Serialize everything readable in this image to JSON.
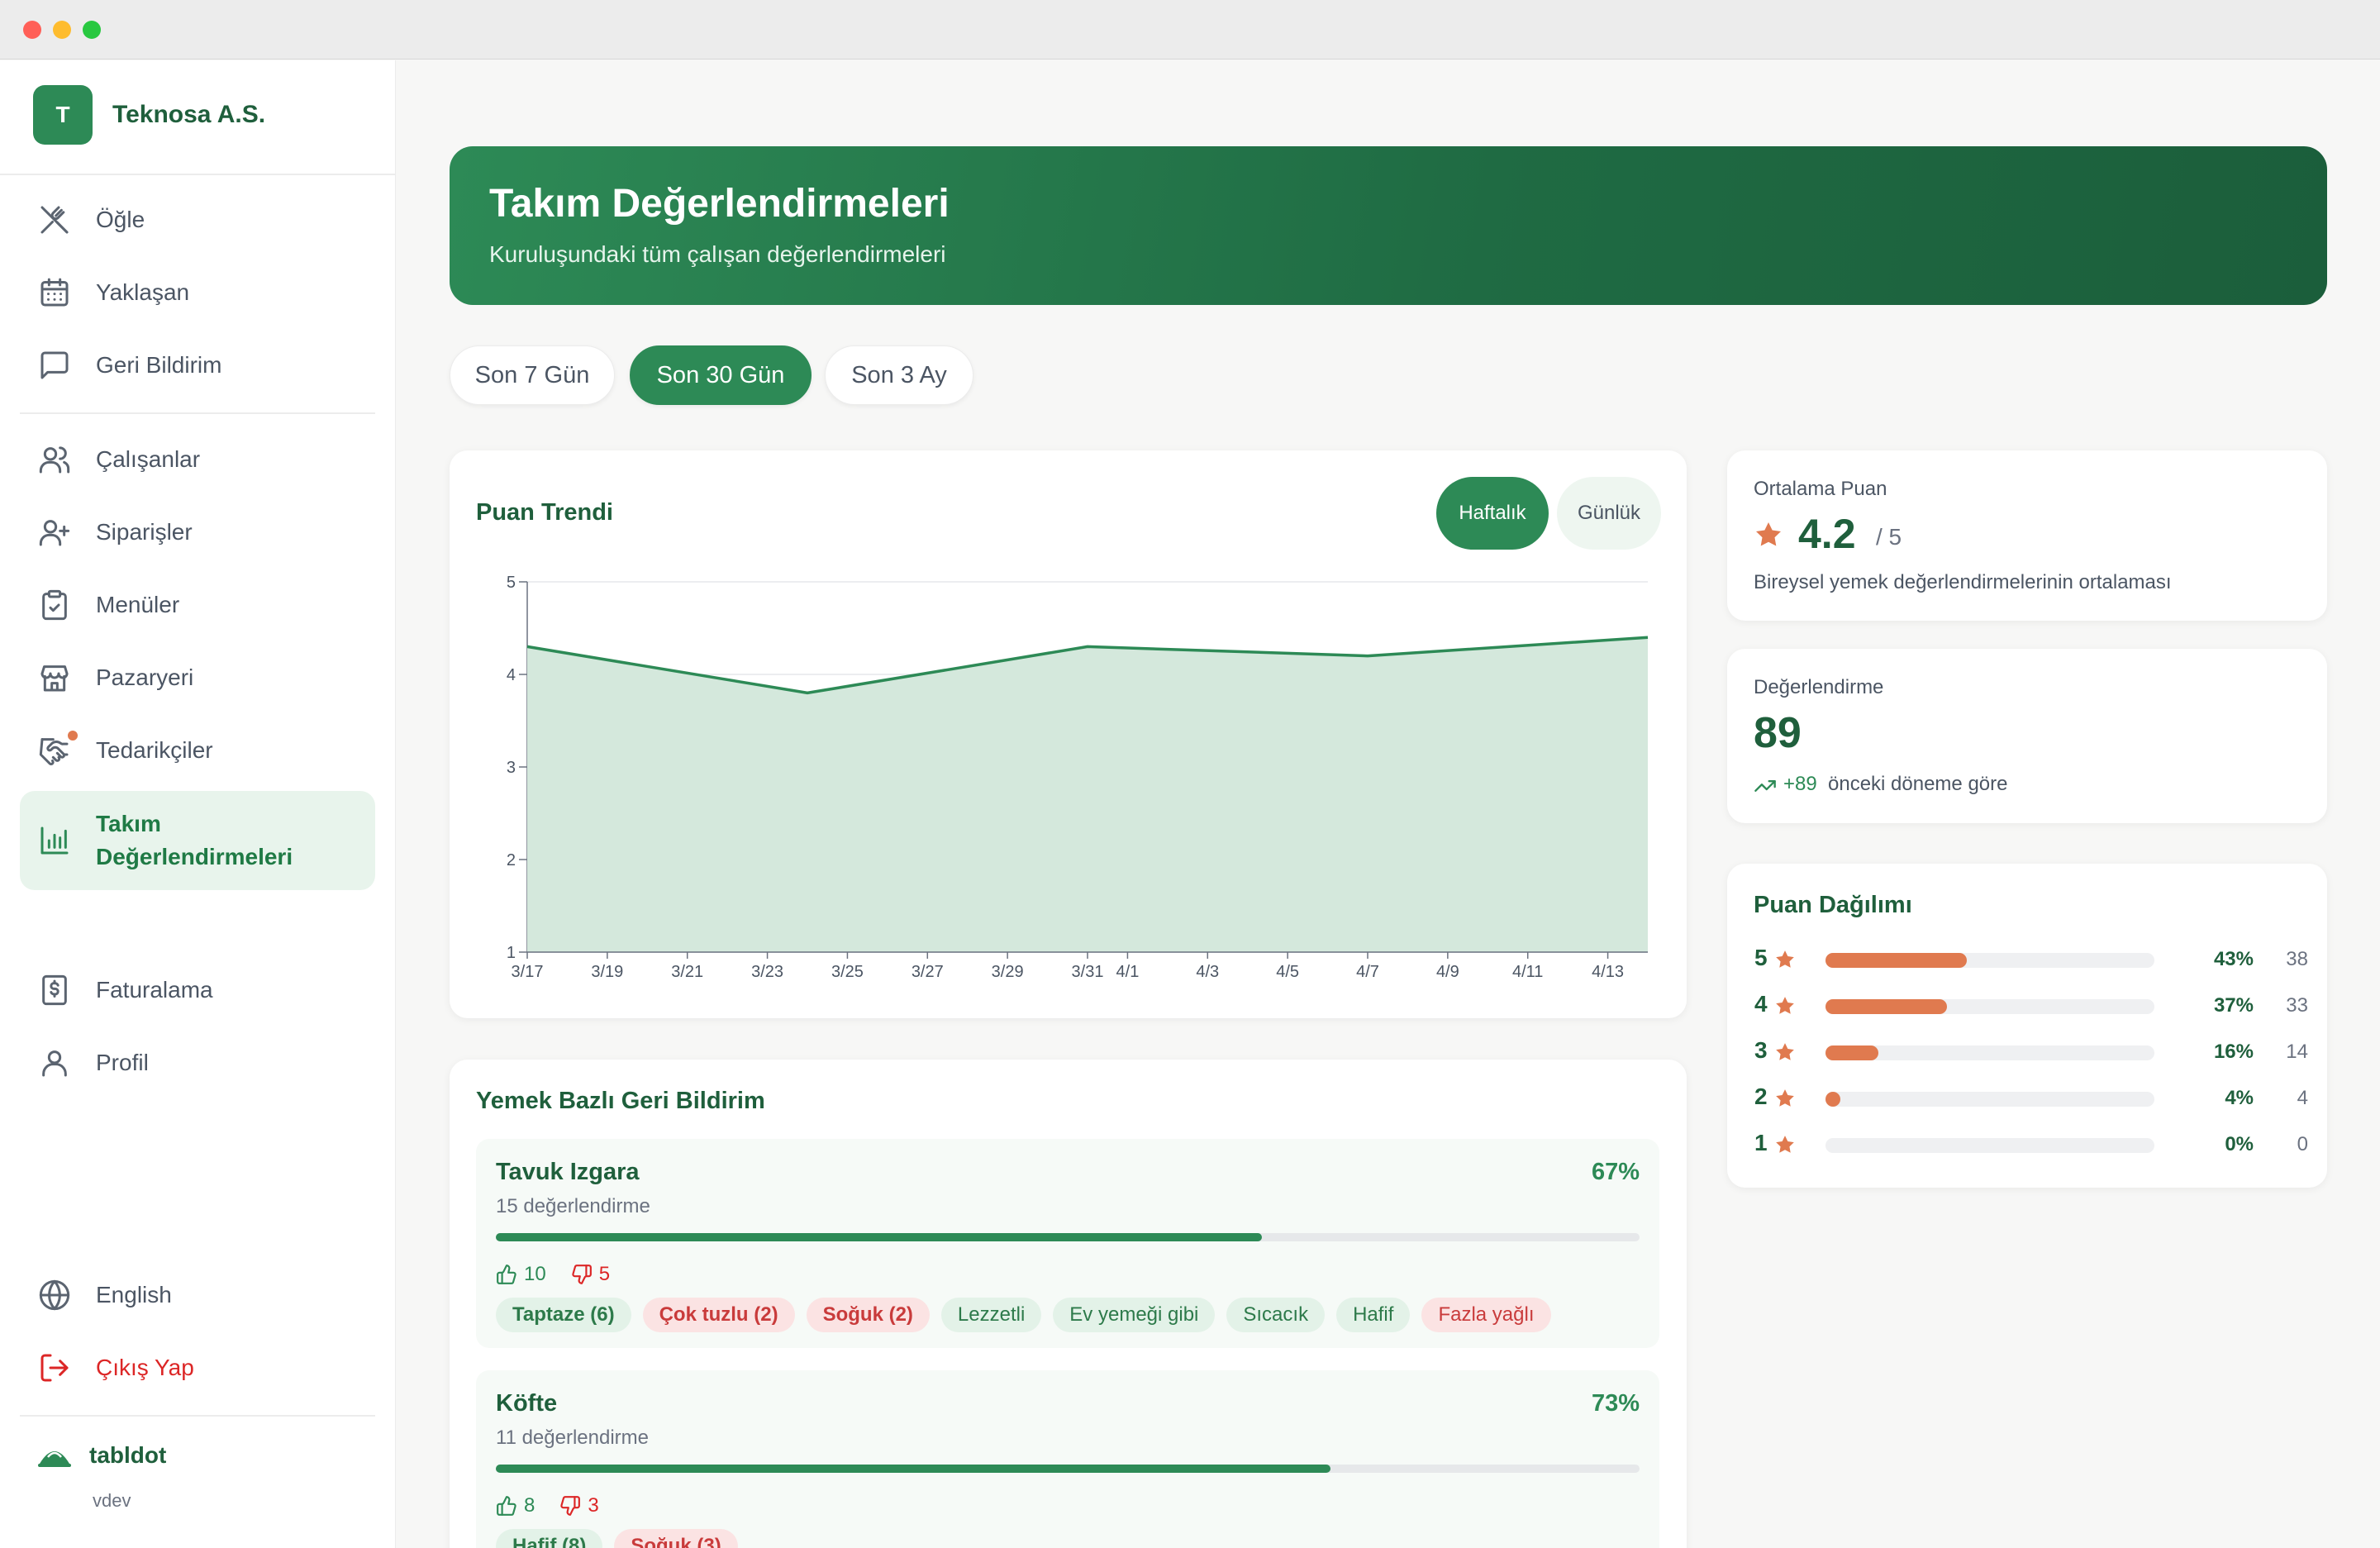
{
  "window": {
    "traffic_lights": [
      "close",
      "minimize",
      "zoom"
    ]
  },
  "sidebar": {
    "company_initial": "T",
    "company_name": "Teknosa A.S.",
    "nav_group1": [
      {
        "label": "Öğle",
        "icon": "utensils-crossed-icon"
      },
      {
        "label": "Yaklaşan",
        "icon": "calendar-icon"
      },
      {
        "label": "Geri Bildirim",
        "icon": "message-square-icon"
      }
    ],
    "nav_group2": [
      {
        "label": "Çalışanlar",
        "icon": "users-icon"
      },
      {
        "label": "Siparişler",
        "icon": "user-plus-icon"
      },
      {
        "label": "Menüler",
        "icon": "clipboard-check-icon"
      },
      {
        "label": "Pazaryeri",
        "icon": "store-icon"
      },
      {
        "label": "Tedarikçiler",
        "icon": "handshake-icon"
      },
      {
        "label": "Takım Değerlendirmeleri",
        "icon": "bar-chart-icon",
        "active": true
      },
      {
        "label": "Faturalama",
        "icon": "receipt-icon"
      },
      {
        "label": "Profil",
        "icon": "user-icon"
      }
    ],
    "language_label": "English",
    "logout_label": "Çıkış Yap",
    "footer_brand": "tabldot",
    "footer_version": "vdev"
  },
  "header": {
    "title": "Takım Değerlendirmeleri",
    "subtitle": "Kuruluşundaki tüm çalışan değerlendirmeleri"
  },
  "range_tabs": [
    {
      "label": "Son 7 Gün",
      "active": false
    },
    {
      "label": "Son 30 Gün",
      "active": true
    },
    {
      "label": "Son 3 Ay",
      "active": false
    }
  ],
  "trend_card": {
    "title": "Puan Trendi",
    "toggle_weekly": "Haftalık",
    "toggle_daily": "Günlük",
    "active_toggle": "Haftalık"
  },
  "chart_data": {
    "type": "area",
    "title": "Puan Trendi",
    "xlabel": "",
    "ylabel": "",
    "ylim": [
      1,
      5
    ],
    "y_ticks": [
      "1",
      "2",
      "3",
      "4",
      "5"
    ],
    "x_ticks": [
      "3/17",
      "3/19",
      "3/21",
      "3/23",
      "3/25",
      "3/27",
      "3/29",
      "3/31",
      "4/1",
      "4/3",
      "4/5",
      "4/7",
      "4/9",
      "4/11",
      "4/13"
    ],
    "series": [
      {
        "color": "#2d8a56",
        "points": [
          {
            "x": "3/17",
            "y": 4.3
          },
          {
            "x": "3/24",
            "y": 3.8
          },
          {
            "x": "3/31",
            "y": 4.3
          },
          {
            "x": "4/7",
            "y": 4.2
          },
          {
            "x": "4/14",
            "y": 4.4
          }
        ]
      }
    ],
    "grid": true
  },
  "avg_card": {
    "label": "Ortalama Puan",
    "value": "4.2",
    "out_of": "/ 5",
    "description": "Bireysel yemek değerlendirmelerinin ortalaması"
  },
  "count_card": {
    "label": "Değerlendirme",
    "value": "89",
    "delta": "+89",
    "delta_text": "önceki döneme göre"
  },
  "distribution": {
    "title": "Puan Dağılımı",
    "rows": [
      {
        "stars": "5",
        "fraction": 0.43,
        "pct": "43%",
        "count": "38"
      },
      {
        "stars": "4",
        "fraction": 0.37,
        "pct": "37%",
        "count": "33"
      },
      {
        "stars": "3",
        "fraction": 0.16,
        "pct": "16%",
        "count": "14"
      },
      {
        "stars": "2",
        "fraction": 0.04,
        "pct": "4%",
        "count": "4"
      },
      {
        "stars": "1",
        "fraction": 0.0,
        "pct": "0%",
        "count": "0"
      }
    ]
  },
  "feedback": {
    "title": "Yemek Bazlı Geri Bildirim",
    "dishes": [
      {
        "name": "Tavuk Izgara",
        "pct": "67%",
        "fraction": 0.67,
        "count_text": "15 değerlendirme",
        "up": "10",
        "down": "5",
        "tags": [
          {
            "text": "Taptaze (6)",
            "kind": "pos",
            "bold": true
          },
          {
            "text": "Çok tuzlu (2)",
            "kind": "neg",
            "bold": true
          },
          {
            "text": "Soğuk (2)",
            "kind": "neg",
            "bold": true
          },
          {
            "text": "Lezzetli",
            "kind": "pos",
            "bold": false
          },
          {
            "text": "Ev yemeği gibi",
            "kind": "pos",
            "bold": false
          },
          {
            "text": "Sıcacık",
            "kind": "pos",
            "bold": false
          },
          {
            "text": "Hafif",
            "kind": "pos",
            "bold": false
          },
          {
            "text": "Fazla yağlı",
            "kind": "neg",
            "bold": false
          }
        ]
      },
      {
        "name": "Köfte",
        "pct": "73%",
        "fraction": 0.73,
        "count_text": "11 değerlendirme",
        "up": "8",
        "down": "3",
        "tags": [
          {
            "text": "Hafif (8)",
            "kind": "pos",
            "bold": true
          },
          {
            "text": "Soğuk (3)",
            "kind": "neg",
            "bold": true
          }
        ]
      }
    ]
  },
  "colors": {
    "brand_green": "#2d8a56",
    "dark_green": "#1f5f3c",
    "accent_orange": "#e07a4f",
    "negative_red": "#dc2626"
  }
}
